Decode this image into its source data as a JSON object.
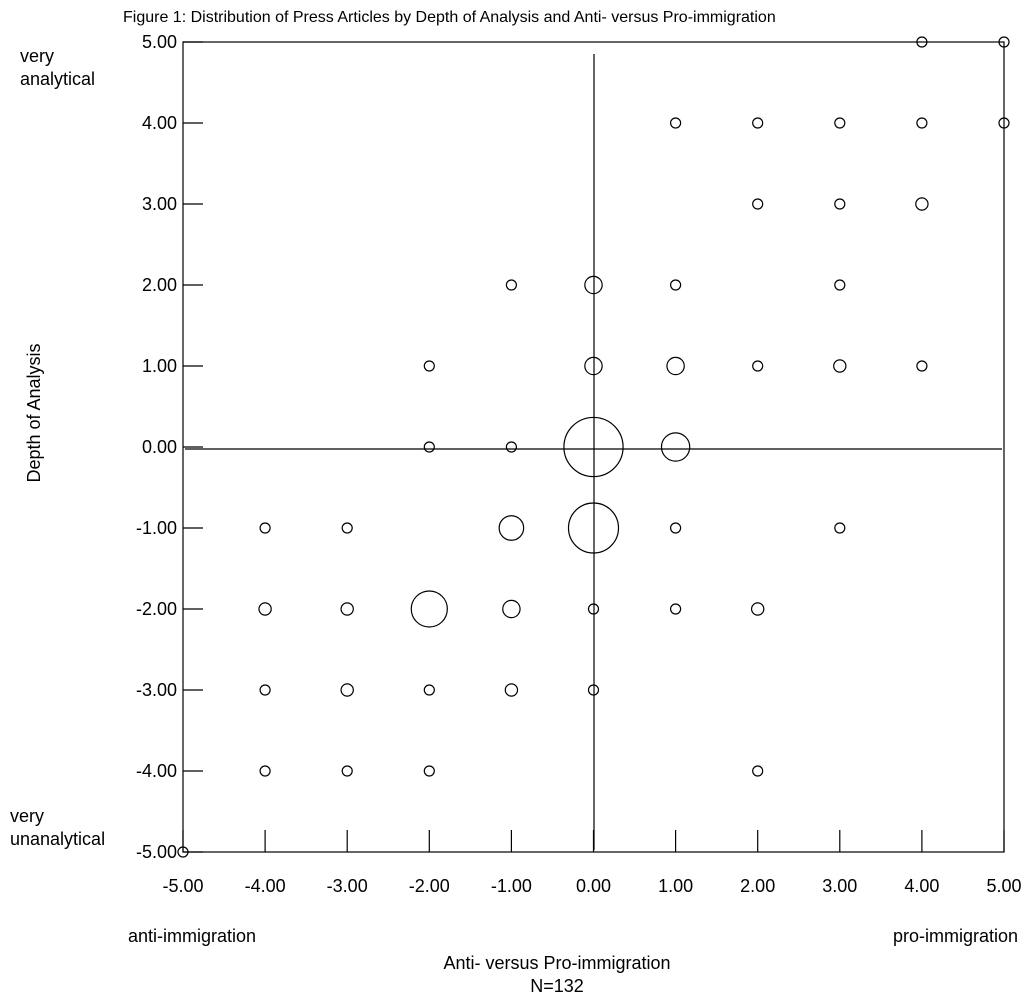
{
  "chart_data": {
    "type": "scatter",
    "variant": "bubble",
    "title": "Figure 1: Distribution of Press Articles by Depth of Analysis and Anti- versus Pro-immigration",
    "xlabel": "Anti- versus Pro-immigration",
    "ylabel": "Depth of Analysis",
    "note": "N=132",
    "xlim": [
      -5,
      5
    ],
    "ylim": [
      -5,
      5
    ],
    "x_ticks": [
      "-5.00",
      "-4.00",
      "-3.00",
      "-2.00",
      "-1.00",
      "0.00",
      "1.00",
      "2.00",
      "3.00",
      "4.00",
      "5.00"
    ],
    "y_ticks": [
      "5.00",
      "4.00",
      "3.00",
      "2.00",
      "1.00",
      "0.00",
      "-1.00",
      "-2.00",
      "-3.00",
      "-4.00",
      "-5.00"
    ],
    "x_end_labels": {
      "left": "anti-immigration",
      "right": "pro-immigration"
    },
    "y_end_labels": {
      "top": [
        "very",
        "analytical"
      ],
      "bottom": [
        "very",
        "unanalytical"
      ]
    },
    "grid": false,
    "reference_lines": {
      "x": 0,
      "y": 0
    },
    "points": [
      {
        "x": 4,
        "y": 5,
        "size": 1
      },
      {
        "x": 5,
        "y": 5,
        "size": 1
      },
      {
        "x": 1,
        "y": 4,
        "size": 1
      },
      {
        "x": 2,
        "y": 4,
        "size": 1
      },
      {
        "x": 3,
        "y": 4,
        "size": 1
      },
      {
        "x": 4,
        "y": 4,
        "size": 1
      },
      {
        "x": 5,
        "y": 4,
        "size": 1
      },
      {
        "x": 2,
        "y": 3,
        "size": 1
      },
      {
        "x": 3,
        "y": 3,
        "size": 1
      },
      {
        "x": 4,
        "y": 3,
        "size": 1.5
      },
      {
        "x": -1,
        "y": 2,
        "size": 1
      },
      {
        "x": 0,
        "y": 2,
        "size": 3
      },
      {
        "x": 1,
        "y": 2,
        "size": 1
      },
      {
        "x": 3,
        "y": 2,
        "size": 1
      },
      {
        "x": -2,
        "y": 1,
        "size": 1
      },
      {
        "x": 0,
        "y": 1,
        "size": 3
      },
      {
        "x": 1,
        "y": 1,
        "size": 3
      },
      {
        "x": 2,
        "y": 1,
        "size": 1
      },
      {
        "x": 3,
        "y": 1,
        "size": 1.5
      },
      {
        "x": 4,
        "y": 1,
        "size": 1
      },
      {
        "x": -2,
        "y": 0,
        "size": 1
      },
      {
        "x": -1,
        "y": 0,
        "size": 1
      },
      {
        "x": 0,
        "y": 0,
        "size": 35
      },
      {
        "x": 1,
        "y": 0,
        "size": 8
      },
      {
        "x": -4,
        "y": -1,
        "size": 1
      },
      {
        "x": -3,
        "y": -1,
        "size": 1
      },
      {
        "x": -1,
        "y": -1,
        "size": 6
      },
      {
        "x": 0,
        "y": -1,
        "size": 25
      },
      {
        "x": 1,
        "y": -1,
        "size": 1
      },
      {
        "x": 3,
        "y": -1,
        "size": 1
      },
      {
        "x": -4,
        "y": -2,
        "size": 1.5
      },
      {
        "x": -3,
        "y": -2,
        "size": 1.5
      },
      {
        "x": -2,
        "y": -2,
        "size": 13
      },
      {
        "x": -1,
        "y": -2,
        "size": 3
      },
      {
        "x": 0,
        "y": -2,
        "size": 1
      },
      {
        "x": 1,
        "y": -2,
        "size": 1
      },
      {
        "x": 2,
        "y": -2,
        "size": 1.5
      },
      {
        "x": -4,
        "y": -3,
        "size": 1
      },
      {
        "x": -3,
        "y": -3,
        "size": 1.5
      },
      {
        "x": -2,
        "y": -3,
        "size": 1
      },
      {
        "x": -1,
        "y": -3,
        "size": 1.5
      },
      {
        "x": 0,
        "y": -3,
        "size": 1
      },
      {
        "x": -4,
        "y": -4,
        "size": 1
      },
      {
        "x": -3,
        "y": -4,
        "size": 1
      },
      {
        "x": -2,
        "y": -4,
        "size": 1
      },
      {
        "x": 2,
        "y": -4,
        "size": 1
      },
      {
        "x": -5,
        "y": -5,
        "size": 1
      }
    ]
  }
}
